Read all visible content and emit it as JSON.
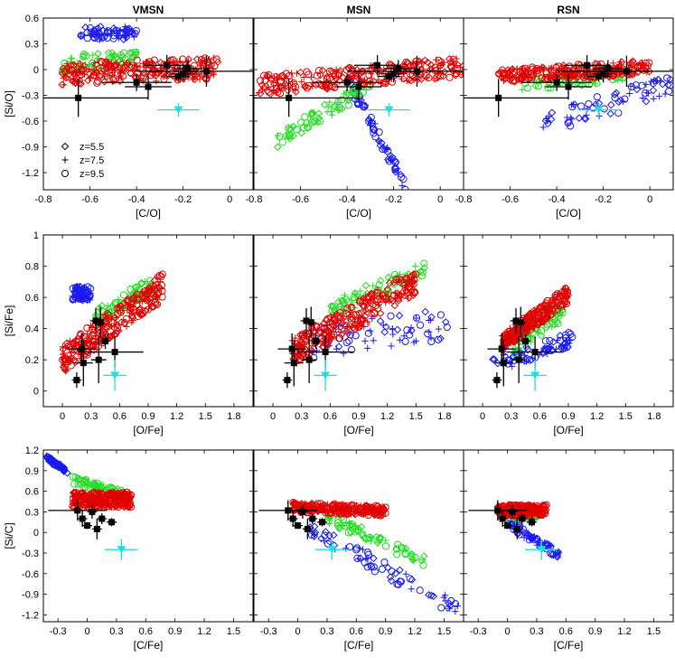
{
  "colors": {
    "red": "#e00000",
    "green": "#22dd22",
    "blue": "#1a1aee",
    "black": "#000000",
    "cyan": "#22dddd"
  },
  "columns": [
    "VMSN",
    "MSN",
    "RSN"
  ],
  "legend": [
    {
      "marker": "diamond",
      "label": "z=5.5"
    },
    {
      "marker": "plus",
      "label": "z=7.5"
    },
    {
      "marker": "circle",
      "label": "z=9.5"
    }
  ],
  "chart_data": [
    {
      "type": "scatter",
      "row": 0,
      "xlabel": "[C/O]",
      "ylabel": "[Si/O]",
      "xlim": [
        -0.8,
        0.1
      ],
      "ylim": [
        -1.4,
        0.6
      ],
      "xticks": [
        -0.8,
        -0.6,
        -0.4,
        -0.2,
        0
      ],
      "xtick_labels": [
        "-0.8",
        "-0.6",
        "-0.4",
        "-0.2",
        "0"
      ],
      "yticks": [
        0.6,
        0.3,
        0,
        -0.3,
        -0.6,
        -0.9,
        -1.2
      ],
      "ytick_labels": [
        "0.6",
        "0.3",
        "0",
        "-0.3",
        "-0.6",
        "-0.9",
        "-1.2"
      ],
      "observations": [
        {
          "x": -0.65,
          "y": -0.33,
          "xerr": 0.3,
          "yerr": 0.22
        },
        {
          "x": -0.4,
          "y": -0.15,
          "xerr": 0.15,
          "yerr": 0.1
        },
        {
          "x": -0.35,
          "y": -0.2,
          "xerr": 0.1,
          "yerr": 0.15
        },
        {
          "x": -0.27,
          "y": 0.05,
          "xerr": 0.1,
          "yerr": 0.12
        },
        {
          "x": -0.2,
          "y": -0.05,
          "xerr": 0.05,
          "yerr": 0.1
        },
        {
          "x": -0.18,
          "y": 0.01,
          "xerr": 0.06,
          "yerr": 0.1
        },
        {
          "x": -0.1,
          "y": -0.02,
          "xerr": 0.3,
          "yerr": 0.18
        },
        {
          "x": -0.22,
          "y": -0.08,
          "xerr": 0.05,
          "yerr": 0.06
        }
      ],
      "cyan_point": {
        "x": -0.22,
        "y": -0.47,
        "xerr": 0.09,
        "yerr": 0.08
      },
      "panels": [
        {
          "column": "VMSN",
          "show_legend": true,
          "groups": [
            {
              "color": "red",
              "x_range": [
                -0.72,
                -0.05
              ],
              "y_range": [
                -0.25,
                0.22
              ],
              "trend": 0.15
            },
            {
              "color": "green",
              "x_range": [
                -0.72,
                -0.4
              ],
              "y_range": [
                -0.1,
                0.3
              ],
              "trend": 0.2
            },
            {
              "color": "blue",
              "x_range": [
                -0.64,
                -0.4
              ],
              "y_range": [
                0.3,
                0.55
              ],
              "trend": 0
            }
          ]
        },
        {
          "column": "MSN",
          "show_legend": false,
          "groups": [
            {
              "color": "red",
              "x_range": [
                -0.78,
                0.1
              ],
              "y_range": [
                -0.35,
                0.2
              ],
              "trend": 0.4
            },
            {
              "color": "green",
              "x_range": [
                -0.7,
                -0.3
              ],
              "y_range": [
                -0.9,
                -0.1
              ],
              "trend": 0.8
            },
            {
              "color": "blue",
              "x_range": [
                -0.4,
                -0.15
              ],
              "y_range": [
                -1.35,
                -0.1
              ],
              "trend": -1
            }
          ]
        },
        {
          "column": "RSN",
          "show_legend": false,
          "groups": [
            {
              "color": "red",
              "x_range": [
                -0.65,
                0.0
              ],
              "y_range": [
                -0.2,
                0.15
              ],
              "trend": 0.3
            },
            {
              "color": "green",
              "x_range": [
                -0.55,
                -0.1
              ],
              "y_range": [
                -0.3,
                0.05
              ],
              "trend": 0.4
            },
            {
              "color": "blue",
              "x_range": [
                -0.5,
                0.1
              ],
              "y_range": [
                -0.85,
                0.0
              ],
              "trend": 0.6
            }
          ]
        }
      ]
    },
    {
      "type": "scatter",
      "row": 1,
      "xlabel": "[O/Fe]",
      "ylabel": "[Si/Fe]",
      "xlim": [
        -0.2,
        2.0
      ],
      "ylim": [
        -0.1,
        1.0
      ],
      "xticks": [
        0,
        0.3,
        0.6,
        0.9,
        1.2,
        1.5,
        1.8
      ],
      "xtick_labels": [
        "0",
        "0.3",
        "0.6",
        "0.9",
        "1.2",
        "1.5",
        "1.8"
      ],
      "yticks": [
        1,
        0.8,
        0.6,
        0.4,
        0.2,
        0
      ],
      "ytick_labels": [
        "1",
        "0.8",
        "0.6",
        "0.4",
        "0.2",
        "0"
      ],
      "observations": [
        {
          "x": 0.15,
          "y": 0.07,
          "xerr": 0.05,
          "yerr": 0.05
        },
        {
          "x": 0.2,
          "y": 0.27,
          "xerr": 0.15,
          "yerr": 0.1
        },
        {
          "x": 0.22,
          "y": 0.18,
          "xerr": 0.1,
          "yerr": 0.15
        },
        {
          "x": 0.35,
          "y": 0.45,
          "xerr": 0.06,
          "yerr": 0.08
        },
        {
          "x": 0.4,
          "y": 0.44,
          "xerr": 0.05,
          "yerr": 0.1
        },
        {
          "x": 0.45,
          "y": 0.32,
          "xerr": 0.05,
          "yerr": 0.05
        },
        {
          "x": 0.55,
          "y": 0.25,
          "xerr": 0.3,
          "yerr": 0.1
        },
        {
          "x": 0.38,
          "y": 0.2,
          "xerr": 0.08,
          "yerr": 0.15
        }
      ],
      "cyan_point": {
        "x": 0.55,
        "y": 0.1,
        "xerr": 0.12,
        "yerr": 0.1
      },
      "panels": [
        {
          "column": "VMSN",
          "show_legend": false,
          "groups": [
            {
              "color": "red",
              "x_range": [
                0.0,
                1.05
              ],
              "y_range": [
                0.1,
                0.77
              ],
              "trend": 0.7
            },
            {
              "color": "green",
              "x_range": [
                0.35,
                0.95
              ],
              "y_range": [
                0.4,
                0.75
              ],
              "trend": 0.6
            },
            {
              "color": "blue",
              "x_range": [
                0.1,
                0.3
              ],
              "y_range": [
                0.55,
                0.7
              ],
              "trend": 0
            }
          ]
        },
        {
          "column": "MSN",
          "show_legend": false,
          "groups": [
            {
              "color": "red",
              "x_range": [
                0.2,
                1.5
              ],
              "y_range": [
                0.15,
                0.8
              ],
              "trend": 0.7
            },
            {
              "color": "green",
              "x_range": [
                0.6,
                1.6
              ],
              "y_range": [
                0.45,
                0.85
              ],
              "trend": 0.6
            },
            {
              "color": "blue",
              "x_range": [
                0.4,
                1.9
              ],
              "y_range": [
                0.15,
                0.6
              ],
              "trend": 0.3
            }
          ]
        },
        {
          "column": "RSN",
          "show_legend": false,
          "groups": [
            {
              "color": "red",
              "x_range": [
                0.2,
                0.9
              ],
              "y_range": [
                0.25,
                0.68
              ],
              "trend": 0.7
            },
            {
              "color": "green",
              "x_range": [
                0.3,
                0.85
              ],
              "y_range": [
                0.2,
                0.6
              ],
              "trend": 0.6
            },
            {
              "color": "blue",
              "x_range": [
                0.1,
                0.95
              ],
              "y_range": [
                0.1,
                0.4
              ],
              "trend": 0.6
            }
          ]
        }
      ]
    },
    {
      "type": "scatter",
      "row": 2,
      "xlabel": "[C/Fe]",
      "ylabel": "[Si/C]",
      "xlim": [
        -0.45,
        1.7
      ],
      "ylim": [
        -1.3,
        1.2
      ],
      "xticks": [
        -0.3,
        0,
        0.3,
        0.6,
        0.9,
        1.2,
        1.5
      ],
      "xtick_labels": [
        "-0.3",
        "0",
        "0.3",
        "0.6",
        "0.9",
        "1.2",
        "1.5"
      ],
      "yticks": [
        1.2,
        0.9,
        0.6,
        0.3,
        0,
        -0.3,
        -0.6,
        -0.9,
        -1.2
      ],
      "ytick_labels": [
        "1.2",
        "0.9",
        "0.6",
        "0.3",
        "0",
        "-0.3",
        "-0.6",
        "-0.9",
        "-1.2"
      ],
      "observations": [
        {
          "x": -0.1,
          "y": 0.32,
          "xerr": 0.3,
          "yerr": 0.15
        },
        {
          "x": -0.05,
          "y": 0.2,
          "xerr": 0.05,
          "yerr": 0.12
        },
        {
          "x": 0.0,
          "y": 0.1,
          "xerr": 0.05,
          "yerr": 0.05
        },
        {
          "x": 0.05,
          "y": 0.3,
          "xerr": 0.05,
          "yerr": 0.1
        },
        {
          "x": 0.1,
          "y": 0.05,
          "xerr": 0.05,
          "yerr": 0.15
        },
        {
          "x": 0.15,
          "y": 0.2,
          "xerr": 0.05,
          "yerr": 0.08
        },
        {
          "x": 0.25,
          "y": 0.15,
          "xerr": 0.05,
          "yerr": 0.06
        }
      ],
      "cyan_point": {
        "x": 0.35,
        "y": -0.25,
        "xerr": 0.17,
        "yerr": 0.15
      },
      "panels": [
        {
          "column": "VMSN",
          "show_legend": false,
          "groups": [
            {
              "color": "red",
              "x_range": [
                -0.15,
                0.45
              ],
              "y_range": [
                0.3,
                0.65
              ],
              "trend": 0
            },
            {
              "color": "green",
              "x_range": [
                -0.15,
                0.4
              ],
              "y_range": [
                0.45,
                0.85
              ],
              "trend": -0.6
            },
            {
              "color": "blue",
              "x_range": [
                -0.42,
                -0.2
              ],
              "y_range": [
                0.85,
                1.12
              ],
              "trend": -0.8
            }
          ]
        },
        {
          "column": "MSN",
          "show_legend": false,
          "groups": [
            {
              "color": "red",
              "x_range": [
                -0.05,
                0.9
              ],
              "y_range": [
                0.2,
                0.48
              ],
              "trend": -0.2
            },
            {
              "color": "green",
              "x_range": [
                0.3,
                1.3
              ],
              "y_range": [
                -0.5,
                0.3
              ],
              "trend": -0.8
            },
            {
              "color": "blue",
              "x_range": [
                0.1,
                1.65
              ],
              "y_range": [
                -1.2,
                0.15
              ],
              "trend": -0.9
            }
          ]
        },
        {
          "column": "RSN",
          "show_legend": false,
          "groups": [
            {
              "color": "red",
              "x_range": [
                -0.1,
                0.4
              ],
              "y_range": [
                0.2,
                0.45
              ],
              "trend": 0
            },
            {
              "color": "green",
              "x_range": [
                0.0,
                0.3
              ],
              "y_range": [
                0.15,
                0.35
              ],
              "trend": 0
            },
            {
              "color": "blue",
              "x_range": [
                0.0,
                0.55
              ],
              "y_range": [
                -0.4,
                0.2
              ],
              "trend": -0.8
            }
          ]
        }
      ]
    }
  ]
}
